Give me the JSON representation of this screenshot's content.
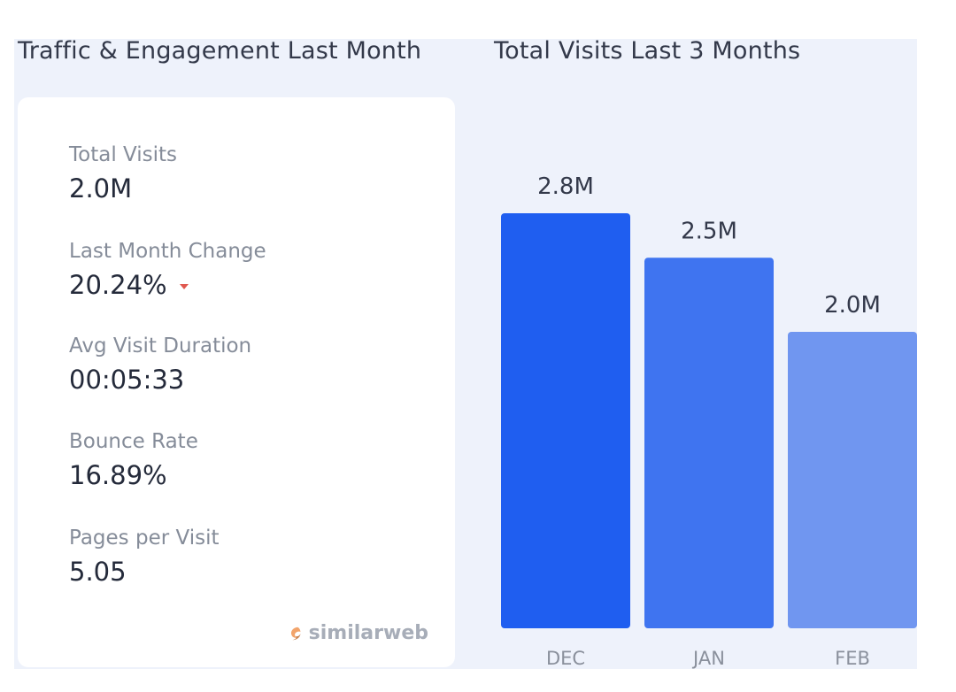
{
  "headings": {
    "left": "Traffic & Engagement Last Month",
    "right": "Total Visits Last 3 Months"
  },
  "metrics": [
    {
      "label": "Total Visits",
      "value": "2.0M"
    },
    {
      "label": "Last Month Change",
      "value": "20.24%",
      "trend": "down"
    },
    {
      "label": "Avg Visit Duration",
      "value": "00:05:33"
    },
    {
      "label": "Bounce Rate",
      "value": "16.89%"
    },
    {
      "label": "Pages per Visit",
      "value": "5.05"
    }
  ],
  "brand": {
    "name": "similarweb",
    "icon": "similarweb-logo-icon"
  },
  "colors": {
    "bar_dec": "#1f5ef0",
    "bar_jan": "#3f74f0",
    "bar_feb": "#7096f0",
    "trend_down": "#e0584f"
  },
  "chart_data": {
    "type": "bar",
    "title": "Total Visits Last 3 Months",
    "categories": [
      "DEC",
      "JAN",
      "FEB"
    ],
    "values": [
      2.8,
      2.5,
      2.0
    ],
    "data_labels": [
      "2.8M",
      "2.5M",
      "2.0M"
    ],
    "unit": "M",
    "ylim": [
      0,
      3.8
    ],
    "grid": false,
    "legend": "none"
  }
}
